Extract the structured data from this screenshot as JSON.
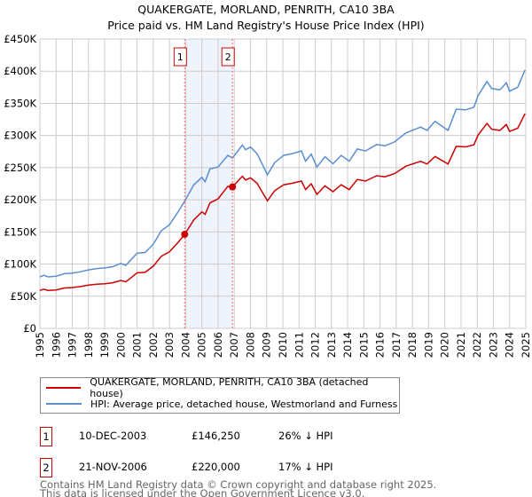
{
  "chart_data": {
    "type": "line",
    "title": "QUAKERGATE, MORLAND, PENRITH, CA10 3BA",
    "subtitle": "Price paid vs. HM Land Registry's House Price Index (HPI)",
    "xlim": [
      1995,
      2025
    ],
    "ylim": [
      0,
      450000
    ],
    "x_ticks": [
      "1995",
      "1996",
      "1997",
      "1998",
      "1999",
      "2000",
      "2001",
      "2002",
      "2003",
      "2004",
      "2005",
      "2006",
      "2007",
      "2008",
      "2009",
      "2010",
      "2011",
      "2012",
      "2013",
      "2014",
      "2015",
      "2016",
      "2017",
      "2018",
      "2019",
      "2020",
      "2021",
      "2022",
      "2023",
      "2024",
      "2025"
    ],
    "y_ticks": [
      {
        "v": 0,
        "label": "£0"
      },
      {
        "v": 50000,
        "label": "£50K"
      },
      {
        "v": 100000,
        "label": "£100K"
      },
      {
        "v": 150000,
        "label": "£150K"
      },
      {
        "v": 200000,
        "label": "£200K"
      },
      {
        "v": 250000,
        "label": "£250K"
      },
      {
        "v": 300000,
        "label": "£300K"
      },
      {
        "v": 350000,
        "label": "£350K"
      },
      {
        "v": 400000,
        "label": "£400K"
      },
      {
        "v": 450000,
        "label": "£450K"
      }
    ],
    "grid": true,
    "colors": {
      "property": "#cc0000",
      "hpi": "#5b8ed0",
      "band": "#eef3fc",
      "marker_line": "#ff6666"
    },
    "series": [
      {
        "name": "HPI: Average price, detached house, Westmorland and Furness",
        "key": "hpi",
        "x": [
          1995.0,
          1995.25,
          1995.5,
          1996.0,
          1996.5,
          1997.0,
          1997.5,
          1998.0,
          1998.5,
          1999.0,
          1999.5,
          2000.0,
          2000.3,
          2000.6,
          2001.0,
          2001.5,
          2002.0,
          2002.5,
          2003.0,
          2003.5,
          2003.94,
          2004.5,
          2005.0,
          2005.2,
          2005.5,
          2006.0,
          2006.6,
          2006.89,
          2007.5,
          2007.7,
          2008.0,
          2008.4,
          2008.6,
          2009.05,
          2009.5,
          2010.05,
          2010.6,
          2011.15,
          2011.4,
          2011.75,
          2012.1,
          2012.6,
          2013.1,
          2013.6,
          2014.1,
          2014.6,
          2015.1,
          2015.8,
          2016.3,
          2016.9,
          2017.6,
          2018.5,
          2018.9,
          2019.4,
          2020.2,
          2020.7,
          2021.3,
          2021.8,
          2022.05,
          2022.6,
          2022.9,
          2023.4,
          2023.8,
          2024.0,
          2024.5,
          2024.95
        ],
        "y": [
          80000,
          82500,
          80000,
          81000,
          85000,
          86000,
          88000,
          91000,
          93000,
          94000,
          96000,
          101000,
          98000,
          106000,
          117000,
          118000,
          131000,
          152000,
          161000,
          180000,
          198000,
          223000,
          235000,
          228000,
          248000,
          251000,
          269000,
          265000,
          285000,
          278000,
          282000,
          272000,
          262000,
          239000,
          258000,
          269000,
          272000,
          276000,
          260000,
          271000,
          251000,
          267000,
          256000,
          269000,
          260000,
          279000,
          276000,
          286000,
          284000,
          290000,
          304000,
          313000,
          308000,
          322000,
          308000,
          341000,
          340000,
          344000,
          362000,
          384000,
          373000,
          371000,
          382000,
          369000,
          375000,
          402000
        ]
      },
      {
        "name": "QUAKERGATE, MORLAND, PENRITH, CA10 3BA (detached house)",
        "key": "property",
        "indexed_to": "hpi"
      }
    ],
    "sales": [
      {
        "id": "1",
        "x": 2003.94,
        "date": "10-DEC-2003",
        "price": 146250,
        "price_label": "£146,250",
        "hpi_diff": "26% ↓ HPI"
      },
      {
        "id": "2",
        "x": 2006.89,
        "date": "21-NOV-2006",
        "price": 220000,
        "price_label": "£220,000",
        "hpi_diff": "17% ↓ HPI"
      }
    ]
  },
  "legend": {
    "property_label": "QUAKERGATE, MORLAND, PENRITH, CA10 3BA (detached house)",
    "hpi_label": "HPI: Average price, detached house, Westmorland and Furness"
  },
  "footer": {
    "line1": "Contains HM Land Registry data © Crown copyright and database right 2025.",
    "line2": "This data is licensed under the Open Government Licence v3.0."
  }
}
